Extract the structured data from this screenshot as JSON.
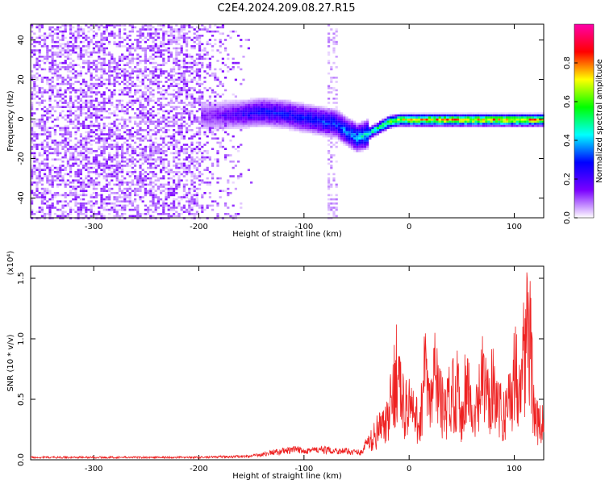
{
  "title": "C2E4.2024.209.08.27.R15",
  "chart_data": [
    {
      "type": "heatmap",
      "xlabel": "Height of straight line (km)",
      "ylabel": "Frequency (Hz)",
      "xlim": [
        -360,
        128
      ],
      "ylim": [
        -50,
        48
      ],
      "xticks": [
        -300,
        -200,
        -100,
        0,
        100
      ],
      "xtick_labels": [
        "-300",
        "-200",
        "-100",
        "0",
        "100"
      ],
      "yticks": [
        -40,
        -20,
        0,
        20,
        40
      ],
      "ytick_labels": [
        "-40",
        "-20",
        "0",
        "20",
        "40"
      ],
      "colorbar": {
        "label": "Normalized spectral amplitude",
        "range": [
          0,
          1
        ],
        "ticks": [
          0.0,
          0.2,
          0.4,
          0.6,
          0.8
        ],
        "tick_labels": [
          "0.0",
          "0.2",
          "0.4",
          "0.6",
          "0.8"
        ],
        "colors": [
          "#ffffff",
          "#7a00ff",
          "#0000ff",
          "#00ffff",
          "#00ff00",
          "#ffff00",
          "#ff0000",
          "#ff00aa"
        ]
      },
      "signal_track": {
        "x": [
          -190,
          -160,
          -140,
          -120,
          -100,
          -80,
          -70,
          -60,
          -50,
          -40,
          -30,
          -20,
          -10,
          0,
          20,
          40,
          60,
          80,
          100,
          128
        ],
        "y": [
          2,
          3,
          4,
          3,
          1,
          -1,
          -2,
          -6,
          -9,
          -7,
          -4,
          -1,
          0,
          0,
          0,
          0,
          0,
          0,
          0,
          0
        ],
        "amplitude": [
          0.15,
          0.25,
          0.3,
          0.3,
          0.32,
          0.35,
          0.35,
          0.4,
          0.45,
          0.5,
          0.6,
          0.7,
          0.75,
          0.8,
          0.85,
          0.85,
          0.85,
          0.85,
          0.85,
          0.85
        ]
      },
      "noise_region": {
        "x_from": -360,
        "x_to": -150,
        "amplitude": 0.1
      }
    },
    {
      "type": "line",
      "xlabel": "Height of straight line (km)",
      "ylabel": "SNR (10 * v/v)",
      "scale_label": "(x10⁴)",
      "xlim": [
        -360,
        128
      ],
      "ylim": [
        0,
        1.6
      ],
      "xticks": [
        -300,
        -200,
        -100,
        0,
        100
      ],
      "xtick_labels": [
        "-300",
        "-200",
        "-100",
        "0",
        "100"
      ],
      "yticks": [
        0.0,
        0.5,
        1.0,
        1.5
      ],
      "ytick_labels": [
        "0.0",
        "0.5",
        "1.0",
        "1.5"
      ],
      "color": "#ee2222",
      "x": [
        -360,
        -300,
        -200,
        -150,
        -130,
        -110,
        -100,
        -80,
        -60,
        -45,
        -38,
        -30,
        -20,
        -12,
        -5,
        0,
        5,
        10,
        15,
        20,
        25,
        30,
        35,
        40,
        45,
        50,
        55,
        60,
        65,
        70,
        75,
        80,
        85,
        90,
        95,
        100,
        105,
        110,
        112,
        115,
        118,
        120,
        125,
        128
      ],
      "y": [
        0.02,
        0.02,
        0.02,
        0.03,
        0.06,
        0.08,
        0.08,
        0.08,
        0.07,
        0.06,
        0.2,
        0.35,
        0.45,
        1.12,
        0.6,
        0.7,
        0.5,
        0.45,
        1.05,
        0.6,
        1.1,
        0.7,
        0.55,
        0.85,
        0.9,
        0.5,
        1.08,
        0.45,
        0.6,
        0.98,
        0.7,
        1.05,
        0.6,
        0.55,
        0.75,
        1.0,
        1.1,
        1.35,
        1.58,
        1.4,
        0.8,
        0.5,
        0.4,
        0.45
      ]
    }
  ]
}
